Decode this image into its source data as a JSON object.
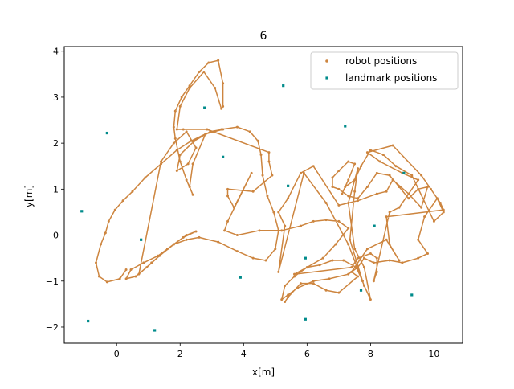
{
  "chart_data": {
    "type": "scatter",
    "title": "6",
    "xlabel": "x[m]",
    "ylabel": "y[m]",
    "xlim": [
      -1.65,
      10.9
    ],
    "ylim": [
      -2.35,
      4.1
    ],
    "x_ticks": [
      0,
      2,
      4,
      6,
      8,
      10
    ],
    "x_tick_labels": [
      "0",
      "2",
      "4",
      "6",
      "8",
      "10"
    ],
    "y_ticks": [
      -2,
      -1,
      0,
      1,
      2,
      3,
      4
    ],
    "y_tick_labels": [
      "−2",
      "−1",
      "0",
      "1",
      "2",
      "3",
      "4"
    ],
    "grid": false,
    "legend_position": "top-right",
    "colors": {
      "robot": "#cd853f",
      "landmark": "#008b8b"
    },
    "series": [
      {
        "name": "robot positions",
        "marker": "point",
        "connected": true,
        "points": [
          [
            0.3,
            -0.75
          ],
          [
            0.1,
            -0.95
          ],
          [
            -0.3,
            -1.02
          ],
          [
            -0.55,
            -0.9
          ],
          [
            -0.65,
            -0.6
          ],
          [
            -0.5,
            -0.2
          ],
          [
            -0.35,
            0.05
          ],
          [
            -0.25,
            0.3
          ],
          [
            -0.05,
            0.55
          ],
          [
            0.2,
            0.75
          ],
          [
            0.5,
            0.95
          ],
          [
            0.9,
            1.25
          ],
          [
            1.4,
            1.55
          ],
          [
            1.9,
            1.85
          ],
          [
            2.35,
            2.05
          ],
          [
            2.8,
            2.2
          ],
          [
            3.3,
            2.3
          ],
          [
            3.8,
            2.35
          ],
          [
            4.2,
            2.25
          ],
          [
            4.45,
            2.05
          ],
          [
            4.55,
            1.75
          ],
          [
            4.6,
            1.3
          ],
          [
            4.75,
            0.85
          ],
          [
            4.95,
            0.5
          ],
          [
            5.1,
            0.1
          ],
          [
            5.0,
            -0.3
          ],
          [
            4.7,
            -0.55
          ],
          [
            4.3,
            -0.5
          ],
          [
            3.8,
            -0.35
          ],
          [
            3.2,
            -0.15
          ],
          [
            2.6,
            -0.05
          ],
          [
            2.2,
            -0.1
          ],
          [
            1.8,
            -0.2
          ],
          [
            1.35,
            -0.45
          ],
          [
            0.95,
            -0.7
          ],
          [
            0.6,
            -0.9
          ],
          [
            0.3,
            -0.95
          ],
          [
            0.45,
            -0.75
          ],
          [
            0.85,
            -0.6
          ],
          [
            1.3,
            -0.45
          ],
          [
            1.8,
            -0.2
          ],
          [
            2.2,
            0.0
          ],
          [
            2.5,
            0.08
          ],
          [
            2.1,
            -0.05
          ],
          [
            1.6,
            -0.3
          ],
          [
            1.1,
            -0.6
          ],
          [
            0.7,
            -0.85
          ],
          [
            1.4,
            1.6
          ],
          [
            1.8,
            2.0
          ],
          [
            2.2,
            2.25
          ],
          [
            2.5,
            1.9
          ],
          [
            2.25,
            1.55
          ],
          [
            1.9,
            1.4
          ],
          [
            2.0,
            1.75
          ],
          [
            2.45,
            2.05
          ],
          [
            2.95,
            2.25
          ],
          [
            3.35,
            2.3
          ],
          [
            2.8,
            2.2
          ],
          [
            2.4,
            1.55
          ],
          [
            2.3,
            1.05
          ],
          [
            2.4,
            0.88
          ],
          [
            2.2,
            1.2
          ],
          [
            2.0,
            1.6
          ],
          [
            1.85,
            2.1
          ],
          [
            1.8,
            2.35
          ],
          [
            1.85,
            2.7
          ],
          [
            2.05,
            3.0
          ],
          [
            2.3,
            3.25
          ],
          [
            2.6,
            3.55
          ],
          [
            2.9,
            3.75
          ],
          [
            3.2,
            3.8
          ],
          [
            3.35,
            3.3
          ],
          [
            3.35,
            2.8
          ],
          [
            3.3,
            2.75
          ],
          [
            3.1,
            3.2
          ],
          [
            2.75,
            3.55
          ],
          [
            2.3,
            3.2
          ],
          [
            2.0,
            2.8
          ],
          [
            1.9,
            2.3
          ],
          [
            2.1,
            2.3
          ],
          [
            2.85,
            2.3
          ],
          [
            4.8,
            1.8
          ],
          [
            4.8,
            1.6
          ],
          [
            4.9,
            1.3
          ],
          [
            4.3,
            0.95
          ],
          [
            3.5,
            1.0
          ],
          [
            3.5,
            0.85
          ],
          [
            3.7,
            0.6
          ],
          [
            4.25,
            1.35
          ],
          [
            3.5,
            0.3
          ],
          [
            3.4,
            0.1
          ],
          [
            3.8,
            0.0
          ],
          [
            4.5,
            0.1
          ],
          [
            5.2,
            0.1
          ],
          [
            5.8,
            0.2
          ],
          [
            6.2,
            0.3
          ],
          [
            6.6,
            0.33
          ],
          [
            7.0,
            0.3
          ],
          [
            7.3,
            0.15
          ],
          [
            6.9,
            -0.2
          ],
          [
            6.5,
            -0.5
          ],
          [
            6.0,
            -0.7
          ],
          [
            5.6,
            -0.9
          ],
          [
            5.3,
            -1.1
          ],
          [
            5.2,
            -1.4
          ],
          [
            5.4,
            -1.3
          ],
          [
            5.7,
            -1.15
          ],
          [
            6.2,
            -1.0
          ],
          [
            6.7,
            -0.95
          ],
          [
            7.3,
            -0.85
          ],
          [
            7.6,
            -0.7
          ],
          [
            7.8,
            -0.5
          ],
          [
            8.1,
            -0.6
          ],
          [
            8.6,
            -0.55
          ],
          [
            9.0,
            -0.6
          ],
          [
            9.5,
            -0.5
          ],
          [
            9.8,
            -0.4
          ],
          [
            9.5,
            -0.1
          ],
          [
            9.7,
            0.4
          ],
          [
            10.1,
            0.8
          ],
          [
            10.3,
            0.5
          ],
          [
            10.0,
            0.3
          ],
          [
            9.3,
            1.3
          ],
          [
            8.8,
            1.5
          ],
          [
            8.4,
            1.75
          ],
          [
            8.0,
            1.85
          ],
          [
            7.7,
            1.5
          ],
          [
            7.5,
            1.2
          ],
          [
            7.2,
            1.05
          ],
          [
            7.1,
            0.9
          ],
          [
            7.3,
            1.2
          ],
          [
            7.5,
            1.55
          ],
          [
            7.3,
            1.6
          ],
          [
            7.0,
            1.4
          ],
          [
            6.8,
            1.25
          ],
          [
            6.8,
            1.05
          ],
          [
            7.0,
            1.0
          ],
          [
            7.3,
            0.85
          ],
          [
            7.6,
            0.8
          ],
          [
            7.9,
            1.05
          ],
          [
            8.2,
            1.35
          ],
          [
            8.6,
            1.3
          ],
          [
            8.9,
            1.05
          ],
          [
            9.2,
            0.8
          ],
          [
            9.5,
            1.0
          ],
          [
            9.8,
            1.05
          ],
          [
            9.6,
            0.6
          ],
          [
            9.2,
            0.9
          ],
          [
            8.7,
            1.2
          ],
          [
            8.5,
            0.95
          ],
          [
            8.2,
            0.9
          ],
          [
            7.6,
            0.75
          ],
          [
            7.0,
            0.65
          ],
          [
            6.2,
            1.5
          ],
          [
            5.8,
            1.35
          ],
          [
            5.4,
            0.8
          ],
          [
            5.1,
            0.5
          ],
          [
            5.3,
            0.2
          ],
          [
            5.1,
            -0.8
          ],
          [
            5.9,
            1.35
          ],
          [
            6.6,
            0.7
          ],
          [
            7.3,
            -0.2
          ],
          [
            7.8,
            -1.1
          ],
          [
            8.0,
            -1.4
          ],
          [
            7.8,
            -0.7
          ],
          [
            7.5,
            -0.3
          ],
          [
            7.3,
            0.7
          ],
          [
            7.6,
            1.45
          ],
          [
            7.5,
            0.95
          ],
          [
            7.35,
            -0.1
          ],
          [
            7.75,
            -1.0
          ],
          [
            7.55,
            -0.7
          ],
          [
            7.15,
            -0.55
          ],
          [
            6.8,
            -0.55
          ],
          [
            6.4,
            -0.65
          ],
          [
            6.0,
            -0.7
          ],
          [
            5.6,
            -0.85
          ],
          [
            7.4,
            -0.7
          ],
          [
            7.6,
            -0.5
          ],
          [
            8.0,
            -0.4
          ],
          [
            8.2,
            -0.5
          ],
          [
            8.2,
            -0.8
          ],
          [
            8.1,
            -1.0
          ],
          [
            8.6,
            0.5
          ],
          [
            8.9,
            0.6
          ],
          [
            9.5,
            1.2
          ],
          [
            9.0,
            1.35
          ],
          [
            8.3,
            1.6
          ],
          [
            7.9,
            1.8
          ],
          [
            8.7,
            1.95
          ],
          [
            9.6,
            1.3
          ],
          [
            9.9,
            1.0
          ],
          [
            10.2,
            0.7
          ],
          [
            10.3,
            0.55
          ],
          [
            8.5,
            0.4
          ],
          [
            8.6,
            -0.2
          ],
          [
            8.9,
            -0.55
          ],
          [
            8.5,
            -0.1
          ],
          [
            7.9,
            -0.3
          ],
          [
            7.4,
            -0.8
          ],
          [
            7.6,
            -0.9
          ],
          [
            7.0,
            -1.25
          ],
          [
            6.6,
            -1.2
          ],
          [
            6.2,
            -1.05
          ],
          [
            5.8,
            -1.05
          ],
          [
            5.4,
            -1.35
          ],
          [
            5.3,
            -1.45
          ]
        ]
      },
      {
        "name": "landmark positions",
        "marker": "square",
        "connected": false,
        "points": [
          [
            -0.3,
            2.22
          ],
          [
            2.77,
            2.77
          ],
          [
            5.25,
            3.25
          ],
          [
            7.2,
            2.37
          ],
          [
            3.35,
            1.7
          ],
          [
            5.4,
            1.07
          ],
          [
            -1.1,
            0.52
          ],
          [
            0.77,
            -0.1
          ],
          [
            3.9,
            -0.92
          ],
          [
            5.95,
            -0.5
          ],
          [
            8.12,
            0.2
          ],
          [
            9.05,
            1.35
          ],
          [
            7.7,
            -1.2
          ],
          [
            9.3,
            -1.3
          ],
          [
            5.95,
            -1.83
          ],
          [
            -0.9,
            -1.87
          ],
          [
            1.2,
            -2.07
          ]
        ]
      }
    ]
  }
}
